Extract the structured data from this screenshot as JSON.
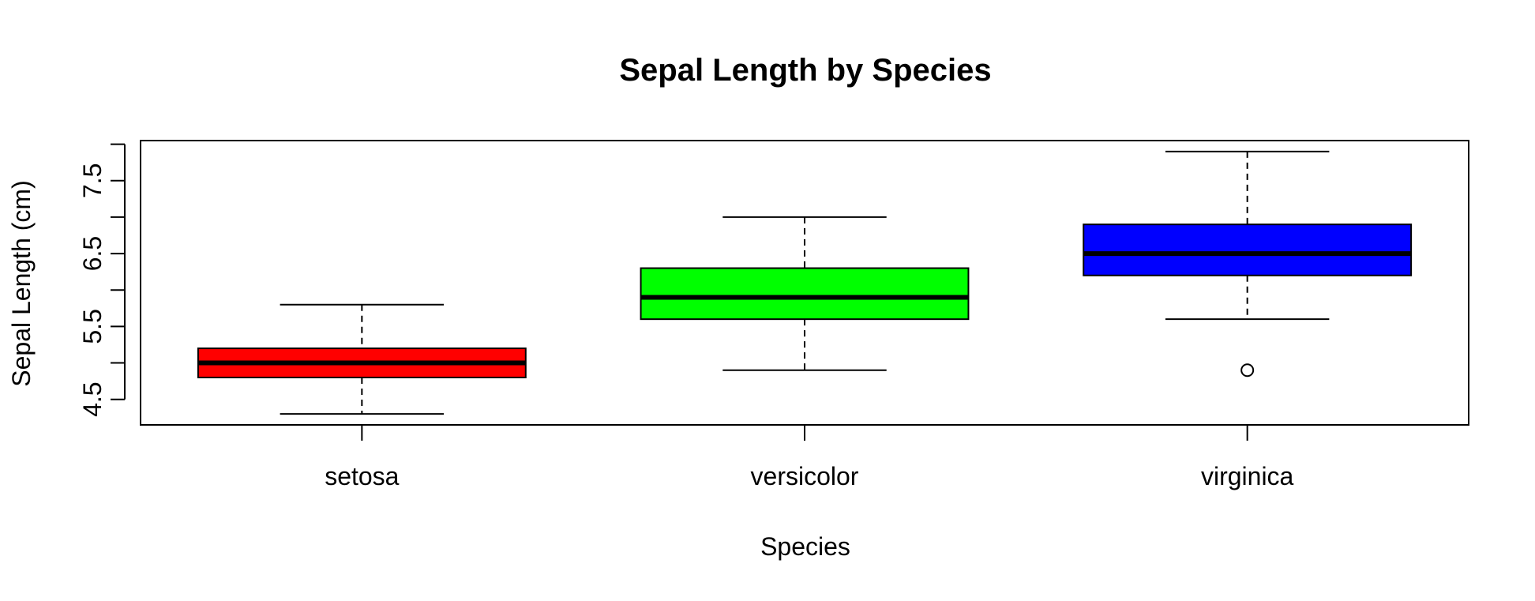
{
  "chart_data": {
    "type": "boxplot",
    "title": "Sepal Length by Species",
    "xlabel": "Species",
    "ylabel": "Sepal Length (cm)",
    "categories": [
      "setosa",
      "versicolor",
      "virginica"
    ],
    "colors": [
      "#ff0000",
      "#00ff00",
      "#0000ff"
    ],
    "ylim": [
      4.15,
      8.05
    ],
    "yticks": [
      4.5,
      5.0,
      5.5,
      6.0,
      6.5,
      7.0,
      7.5,
      8.0
    ],
    "ytick_labels": [
      "4.5",
      "",
      "5.5",
      "",
      "6.5",
      "",
      "7.5",
      ""
    ],
    "series": [
      {
        "category": "setosa",
        "min": 4.3,
        "q1": 4.8,
        "median": 5.0,
        "q3": 5.2,
        "max": 5.8,
        "outliers": []
      },
      {
        "category": "versicolor",
        "min": 4.9,
        "q1": 5.6,
        "median": 5.9,
        "q3": 6.3,
        "max": 7.0,
        "outliers": []
      },
      {
        "category": "virginica",
        "min": 5.6,
        "q1": 6.2,
        "median": 6.5,
        "q3": 6.9,
        "max": 7.9,
        "outliers": [
          4.9
        ]
      }
    ],
    "grid": false,
    "legend": "none"
  }
}
